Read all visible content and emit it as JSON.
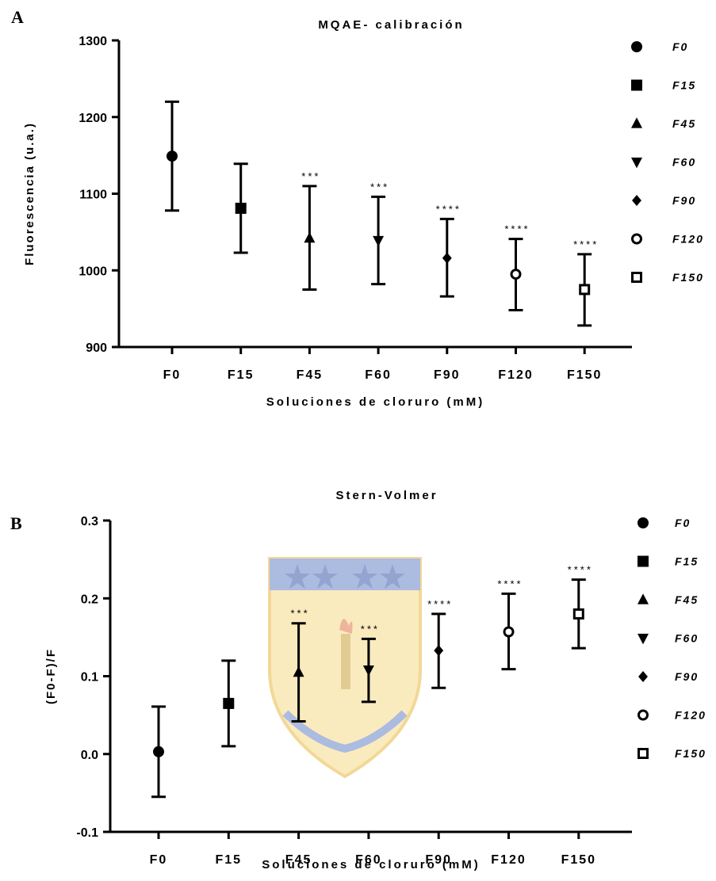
{
  "chart_data": [
    {
      "type": "scatter",
      "panel_label": "A",
      "title": "MQAE- calibración",
      "xlabel": "Soluciones de cloruro (mM)",
      "ylabel": "Fluorescencia (u.a.)",
      "ylim": [
        900,
        1300
      ],
      "yticks": [
        "900",
        "1000",
        "1100",
        "1200",
        "1300"
      ],
      "categories": [
        "F0",
        "F15",
        "F45",
        "F60",
        "F90",
        "F120",
        "F150"
      ],
      "series": [
        {
          "name": "F0",
          "marker": "circle",
          "x": "F0",
          "y": 1149,
          "err_low": 1078,
          "err_high": 1220,
          "sig": ""
        },
        {
          "name": "F15",
          "marker": "square",
          "x": "F15",
          "y": 1081,
          "err_low": 1023,
          "err_high": 1139,
          "sig": ""
        },
        {
          "name": "F45",
          "marker": "triangle-up",
          "x": "F45",
          "y": 1042,
          "err_low": 975,
          "err_high": 1110,
          "sig": "***"
        },
        {
          "name": "F60",
          "marker": "triangle-down",
          "x": "F60",
          "y": 1039,
          "err_low": 982,
          "err_high": 1096,
          "sig": "***"
        },
        {
          "name": "F90",
          "marker": "diamond",
          "x": "F90",
          "y": 1016,
          "err_low": 966,
          "err_high": 1067,
          "sig": "****"
        },
        {
          "name": "F120",
          "marker": "circle-open",
          "x": "F120",
          "y": 995,
          "err_low": 948,
          "err_high": 1041,
          "sig": "****"
        },
        {
          "name": "F150",
          "marker": "square-open",
          "x": "F150",
          "y": 975,
          "err_low": 928,
          "err_high": 1021,
          "sig": "****"
        }
      ],
      "legend": [
        "F0",
        "F15",
        "F45",
        "F60",
        "F90",
        "F120",
        "F150"
      ],
      "legend_position": "right",
      "grid": false
    },
    {
      "type": "scatter",
      "panel_label": "B",
      "title": "Stern-Volmer",
      "xlabel": "Soluciones de cloruro (mM)",
      "ylabel": "(F0-F)/F",
      "ylim": [
        -0.1,
        0.3
      ],
      "yticks": [
        "-0.1",
        "0.0",
        "0.1",
        "0.2",
        "0.3"
      ],
      "categories": [
        "F0",
        "F15",
        "F45",
        "F60",
        "F90",
        "F120",
        "F150"
      ],
      "series": [
        {
          "name": "F0",
          "marker": "circle",
          "x": "F0",
          "y": 0.003,
          "err_low": -0.055,
          "err_high": 0.061,
          "sig": ""
        },
        {
          "name": "F15",
          "marker": "square",
          "x": "F15",
          "y": 0.065,
          "err_low": 0.01,
          "err_high": 0.12,
          "sig": ""
        },
        {
          "name": "F45",
          "marker": "triangle-up",
          "x": "F45",
          "y": 0.105,
          "err_low": 0.042,
          "err_high": 0.168,
          "sig": "***"
        },
        {
          "name": "F60",
          "marker": "triangle-down",
          "x": "F60",
          "y": 0.108,
          "err_low": 0.067,
          "err_high": 0.148,
          "sig": "***"
        },
        {
          "name": "F90",
          "marker": "diamond",
          "x": "F90",
          "y": 0.133,
          "err_low": 0.085,
          "err_high": 0.18,
          "sig": "****"
        },
        {
          "name": "F120",
          "marker": "circle-open",
          "x": "F120",
          "y": 0.157,
          "err_low": 0.109,
          "err_high": 0.206,
          "sig": "****"
        },
        {
          "name": "F150",
          "marker": "square-open",
          "x": "F150",
          "y": 0.18,
          "err_low": 0.136,
          "err_high": 0.224,
          "sig": "****"
        }
      ],
      "legend": [
        "F0",
        "F15",
        "F45",
        "F60",
        "F90",
        "F120",
        "F150"
      ],
      "legend_position": "right",
      "grid": false
    }
  ],
  "watermark": {
    "description": "university crest watermark",
    "colors": [
      "#3a5aa8",
      "#f1c34a",
      "#e07a4a"
    ]
  }
}
